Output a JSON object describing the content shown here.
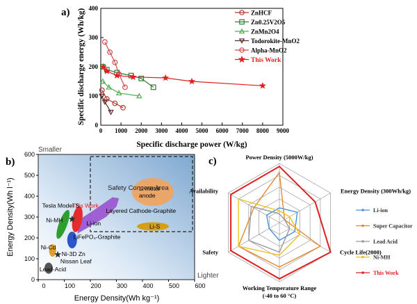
{
  "panel_labels": {
    "a": "a)",
    "b": "b)",
    "c": "c)"
  },
  "colors": {
    "ZnHCF": "#b03a2e",
    "ZnV": "#2e7d32",
    "ZnMn": "#4caf50",
    "Todorokite": "#5d2a2a",
    "Alpha": "#d14b4b",
    "ThisWork": "#e02020",
    "Liion": "#4a90d9",
    "SuperCap": "#e8862a",
    "LeadAcid": "#999999",
    "NiMH": "#f0c020"
  },
  "chart_data": [
    {
      "type": "scatter",
      "title": "",
      "xlabel": "Specific discharge power (W/kg)",
      "ylabel": "Specific discharge energy (Wh/kg)",
      "xlim": [
        0,
        9000
      ],
      "ylim": [
        0,
        400
      ],
      "xticks": [
        "0",
        "1000",
        "2000",
        "3000",
        "4000",
        "5000",
        "6000",
        "7000",
        "8000",
        "9000"
      ],
      "yticks": [
        "0",
        "100",
        "200",
        "300",
        "400"
      ],
      "series": [
        {
          "name": "ZnHCF",
          "key": "ZnHCF",
          "marker": "circle",
          "points": [
            [
              60,
              120
            ],
            [
              300,
              90
            ],
            [
              700,
              75
            ],
            [
              1100,
              60
            ]
          ]
        },
        {
          "name": "Zn0.25V2O5",
          "key": "ZnV",
          "marker": "square",
          "points": [
            [
              100,
              200
            ],
            [
              300,
              190
            ],
            [
              800,
              180
            ],
            [
              1500,
              170
            ],
            [
              2000,
              160
            ],
            [
              2600,
              130
            ]
          ]
        },
        {
          "name": "ZnMn2O4",
          "key": "ZnMn",
          "marker": "triangle",
          "points": [
            [
              100,
              150
            ],
            [
              400,
              130
            ],
            [
              900,
              110
            ],
            [
              1900,
              100
            ]
          ]
        },
        {
          "name": "Todorokite-MnO2",
          "key": "Todorokite",
          "marker": "triangle-down",
          "points": [
            [
              50,
              100
            ],
            [
              200,
              80
            ],
            [
              500,
              45
            ]
          ]
        },
        {
          "name": "Alpha-MnO2",
          "key": "Alpha",
          "marker": "circle",
          "points": [
            [
              200,
              285
            ],
            [
              450,
              250
            ],
            [
              700,
              215
            ],
            [
              900,
              175
            ],
            [
              1200,
              130
            ]
          ]
        },
        {
          "name": "This Work",
          "key": "ThisWork",
          "marker": "star",
          "points": [
            [
              120,
              200
            ],
            [
              300,
              185
            ],
            [
              800,
              170
            ],
            [
              1600,
              165
            ],
            [
              3200,
              162
            ],
            [
              4500,
              150
            ],
            [
              8000,
              135
            ]
          ]
        }
      ]
    },
    {
      "type": "scatter",
      "title": "",
      "xlabel": "Energy Density(Wh kg⁻¹)",
      "ylabel": "Energy Density(Wh l⁻¹)",
      "xlim": [
        0,
        600
      ],
      "ylim": [
        0,
        600
      ],
      "xticks": [
        "0",
        "100",
        "200",
        "300",
        "400",
        "500",
        "600"
      ],
      "yticks": [
        "0",
        "100",
        "200",
        "300",
        "400",
        "500",
        "600"
      ],
      "corner_labels": {
        "top": "Smaller",
        "right": "Lighter"
      },
      "regions": [
        {
          "label": "Li metal anode",
          "cx": 440,
          "cy": 420,
          "color": "#f2a35c"
        },
        {
          "label": "Layered Cathode-Graphite",
          "cx": 430,
          "cy": 320,
          "color": ""
        },
        {
          "label": "Li-S",
          "cx": 440,
          "cy": 255,
          "color": "#d4a017"
        },
        {
          "label": "Li-ion",
          "cx": 220,
          "cy": 280,
          "color": "#9b59d0"
        },
        {
          "label": "This Work",
          "cx": 150,
          "cy": 290,
          "color": "#e52b2b"
        },
        {
          "label": "Tesla Model S",
          "cx": 110,
          "cy": 330,
          "color": ""
        },
        {
          "label": "Ni-MH",
          "cx": 95,
          "cy": 265,
          "color": "#2e9e2e"
        },
        {
          "label": "Ni-Cd",
          "cx": 55,
          "cy": 140,
          "color": "#e0a030"
        },
        {
          "label": "LiFePO₄-Graphite",
          "cx": 130,
          "cy": 190,
          "color": "#2b56c8"
        },
        {
          "label": "Ni-3D Zn",
          "cx": 90,
          "cy": 115,
          "color": "#3a6ad4"
        },
        {
          "label": "Nissan Leaf",
          "cx": 100,
          "cy": 80,
          "color": ""
        },
        {
          "label": "Lead-Acid",
          "cx": 40,
          "cy": 55,
          "color": "#555555"
        }
      ],
      "concern_area": {
        "label": "Safety Concern Area",
        "x0": 200,
        "x1": 600,
        "y0": 230,
        "y1": 590
      }
    },
    {
      "type": "radar",
      "axes": [
        "Power Density (5000W/kg)",
        "Energy Density (300Wh/kg)",
        "Cycle Life(2000)",
        "Working Temperature Range (-40 to 60 °C)",
        "Safety",
        "Availability"
      ],
      "levels": 5,
      "series": [
        {
          "name": "Li-ion",
          "key": "Liion",
          "values": [
            0.25,
            0.35,
            0.3,
            0.3,
            0.2,
            0.25
          ]
        },
        {
          "name": "Super Capacitor",
          "key": "SuperCap",
          "values": [
            0.85,
            0.1,
            0.8,
            0.75,
            0.8,
            0.5
          ]
        },
        {
          "name": "Lead Acid",
          "key": "LeadAcid",
          "values": [
            0.15,
            0.1,
            0.2,
            0.5,
            0.6,
            0.55
          ]
        },
        {
          "name": "Ni-MH",
          "key": "NiMH",
          "values": [
            0.2,
            0.2,
            0.4,
            0.55,
            0.8,
            0.8
          ]
        },
        {
          "name": "This Work",
          "key": "ThisWork",
          "values": [
            0.95,
            0.7,
            1.0,
            0.95,
            0.95,
            0.95
          ]
        }
      ]
    }
  ]
}
